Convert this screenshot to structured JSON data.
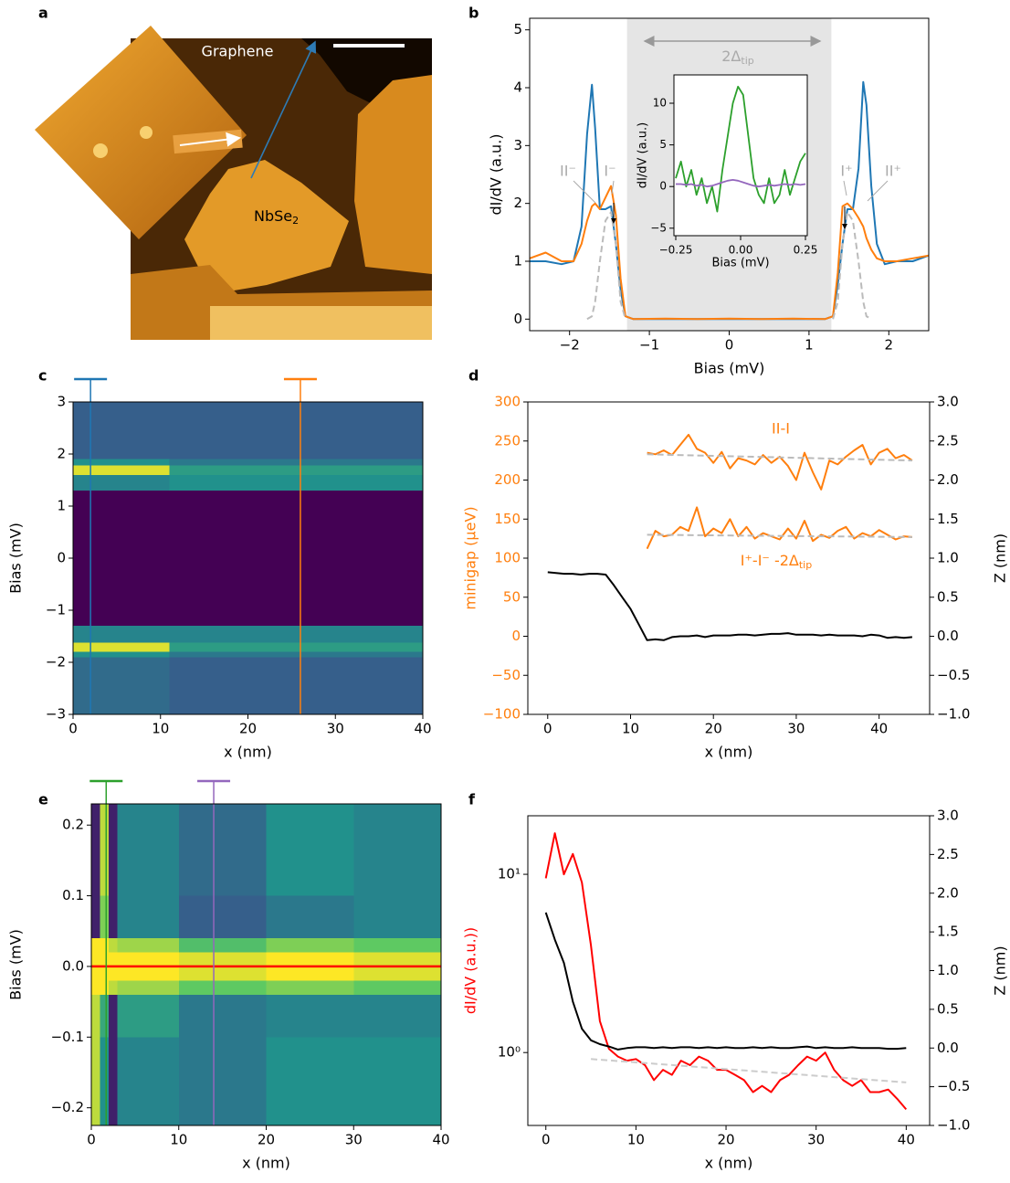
{
  "panel_labels": [
    "a",
    "b",
    "c",
    "d",
    "e",
    "f"
  ],
  "image_a": {
    "labels": [
      "Graphene",
      {
        "text": "NbSe",
        "sub": "2"
      }
    ]
  },
  "chart_data": [
    {
      "type": "line",
      "x": [
        -2.5,
        -2.3,
        -2.1,
        -1.95,
        -1.85,
        -1.78,
        -1.72,
        -1.68,
        -1.62,
        -1.55,
        -1.48,
        -1.42,
        -1.36,
        -1.3,
        -1.2,
        -0.8,
        -0.4,
        0,
        0.4,
        0.8,
        1.2,
        1.3,
        1.36,
        1.42,
        1.48,
        1.55,
        1.62,
        1.68,
        1.72,
        1.78,
        1.85,
        1.95,
        2.1,
        2.3,
        2.5
      ],
      "series": [
        {
          "color": "#1f77b4",
          "values": [
            1.0,
            1.0,
            0.95,
            1.0,
            1.6,
            3.2,
            4.05,
            3.3,
            1.9,
            1.9,
            1.95,
            1.3,
            0.5,
            0.05,
            0,
            0,
            0,
            0,
            0,
            0,
            0,
            0.05,
            0.6,
            1.3,
            1.9,
            1.9,
            2.6,
            4.1,
            3.7,
            2.3,
            1.3,
            0.95,
            1.0,
            1.0,
            1.1
          ]
        },
        {
          "color": "#ff7f0e",
          "values": [
            1.05,
            1.15,
            1.0,
            1.0,
            1.3,
            1.7,
            1.95,
            2.0,
            1.9,
            2.1,
            2.3,
            1.8,
            0.7,
            0.05,
            0,
            0.01,
            0,
            0.01,
            0,
            0.01,
            0,
            0.05,
            0.8,
            1.95,
            2.0,
            1.9,
            1.75,
            1.6,
            1.4,
            1.2,
            1.05,
            1.0,
            1.0,
            1.05,
            1.1
          ]
        },
        {
          "color": "#bbbbbb",
          "dash": true,
          "values": [
            null,
            null,
            null,
            null,
            null,
            0,
            0.05,
            0.3,
            1.0,
            1.7,
            1.85,
            1.3,
            0.3,
            0,
            null,
            null,
            null,
            null,
            null,
            null,
            null,
            0,
            0.3,
            1.3,
            1.85,
            1.7,
            1.0,
            0.3,
            0.05,
            0,
            null,
            null,
            null,
            null,
            null
          ]
        }
      ],
      "xlim": [
        -2.5,
        2.5
      ],
      "xticks": [
        {
          "value": -2,
          "label": "−2"
        },
        {
          "value": -1,
          "label": "−1"
        },
        0,
        1,
        2
      ],
      "ylim": [
        -0.2,
        5.2
      ],
      "yticks": [
        0,
        1,
        2,
        3,
        4,
        5
      ],
      "xlabel": "Bias (mV)",
      "ylabel": "dI/dV (a.u.)",
      "shade": [
        -1.28,
        1.28
      ],
      "shade_color": "#e5e5e5",
      "annotations": [
        "II⁻",
        "I⁻",
        "I⁺",
        "II⁺",
        {
          "text": "2Δ",
          "sub": "tip"
        }
      ],
      "annotation_color": "#aaaaaa",
      "inset": {
        "type": "line",
        "x": [
          -0.25,
          -0.23,
          -0.21,
          -0.19,
          -0.17,
          -0.15,
          -0.13,
          -0.11,
          -0.09,
          -0.07,
          -0.05,
          -0.03,
          -0.01,
          0.01,
          0.03,
          0.05,
          0.07,
          0.09,
          0.11,
          0.13,
          0.15,
          0.17,
          0.19,
          0.21,
          0.23,
          0.25
        ],
        "series": [
          {
            "color": "#2ca02c",
            "values": [
              1,
              3,
              0,
              2,
              -1,
              1,
              -2,
              0,
              -3,
              2,
              6,
              10,
              12,
              11,
              6,
              1,
              -1,
              -2,
              1,
              -2,
              -1,
              2,
              -1,
              1,
              3,
              4
            ]
          },
          {
            "color": "#9467bd",
            "values": [
              0.3,
              0.3,
              0.2,
              0.3,
              0.1,
              0.2,
              0.0,
              0.1,
              0.3,
              0.5,
              0.7,
              0.8,
              0.7,
              0.5,
              0.3,
              0.1,
              0.0,
              0.1,
              0.2,
              0.1,
              0.2,
              0.3,
              0.2,
              0.3,
              0.2,
              0.3
            ]
          }
        ],
        "xlim": [
          -0.257,
          0.257
        ],
        "xticks": [
          {
            "value": -0.25,
            "label": "−0.25"
          },
          {
            "value": 0,
            "label": "0.00"
          },
          0.25
        ],
        "ylim": [
          -5.9,
          13.4
        ],
        "yticks": [
          {
            "value": -5,
            "label": "−5"
          },
          0,
          5,
          10
        ],
        "xlabel": "Bias (mV)",
        "ylabel": "dI/dV (a.u.)"
      }
    },
    {
      "type": "heatmap",
      "xbins": [
        0,
        11,
        40
      ],
      "ybins": [
        -3,
        -1.9,
        -1.8,
        -1.62,
        -1.3,
        1.3,
        1.6,
        1.78,
        1.9,
        3
      ],
      "z": [
        [
          0.35,
          0.3
        ],
        [
          0.5,
          0.4
        ],
        [
          0.95,
          0.55
        ],
        [
          0.45,
          0.45
        ],
        [
          0.0,
          0.0
        ],
        [
          0.45,
          0.5
        ],
        [
          0.95,
          0.55
        ],
        [
          0.5,
          0.4
        ],
        [
          0.3,
          0.3
        ]
      ],
      "colormap": "viridis",
      "clim": [
        0,
        1
      ],
      "xlim": [
        0,
        40
      ],
      "xticks": [
        0,
        10,
        20,
        30,
        40
      ],
      "ylim": [
        -3,
        3
      ],
      "yticks": [
        {
          "value": -3,
          "label": "−3"
        },
        {
          "value": -2,
          "label": "−2"
        },
        {
          "value": -1,
          "label": "−1"
        },
        0,
        1,
        2,
        3
      ],
      "xlabel": "x (nm)",
      "ylabel": "Bias (mV)",
      "markers": [
        {
          "x": 2,
          "color": "#1f77b4"
        },
        {
          "x": 26,
          "color": "#ff7f0e"
        }
      ]
    },
    {
      "type": "line",
      "series": [
        {
          "x": [
            12,
            13,
            14,
            15,
            16,
            17,
            18,
            19,
            20,
            21,
            22,
            23,
            24,
            25,
            26,
            27,
            28,
            29,
            30,
            31,
            32,
            33,
            34,
            35,
            36,
            37,
            38,
            39,
            40,
            41,
            42,
            43,
            44
          ],
          "color": "#ff7f0e",
          "values": [
            235,
            233,
            238,
            232,
            245,
            258,
            240,
            235,
            222,
            236,
            215,
            228,
            225,
            220,
            232,
            222,
            230,
            218,
            200,
            235,
            210,
            188,
            225,
            220,
            230,
            238,
            245,
            220,
            235,
            240,
            228,
            232,
            225
          ]
        },
        {
          "x": [
            12,
            44
          ],
          "color": "#bbbbbb",
          "dash": true,
          "values": [
            233,
            225
          ]
        },
        {
          "x": [
            12,
            13,
            14,
            15,
            16,
            17,
            18,
            19,
            20,
            21,
            22,
            23,
            24,
            25,
            26,
            27,
            28,
            29,
            30,
            31,
            32,
            33,
            34,
            35,
            36,
            37,
            38,
            39,
            40,
            41,
            42,
            43,
            44
          ],
          "color": "#ff7f0e",
          "values": [
            112,
            135,
            128,
            130,
            140,
            135,
            165,
            128,
            138,
            132,
            150,
            128,
            140,
            125,
            132,
            128,
            124,
            138,
            125,
            148,
            122,
            130,
            126,
            135,
            140,
            125,
            132,
            128,
            136,
            130,
            124,
            128,
            127
          ]
        },
        {
          "x": [
            12,
            44
          ],
          "color": "#bbbbbb",
          "dash": true,
          "values": [
            130,
            127
          ]
        },
        {
          "x": [
            0,
            1,
            2,
            3,
            4,
            5,
            6,
            7,
            8,
            9,
            10,
            11,
            12,
            13,
            14,
            15,
            16,
            17,
            18,
            19,
            20,
            21,
            22,
            23,
            24,
            25,
            26,
            27,
            28,
            29,
            30,
            31,
            32,
            33,
            34,
            35,
            36,
            37,
            38,
            39,
            40,
            41,
            42,
            43,
            44
          ],
          "color": "#000000",
          "axis": "y2",
          "values": [
            0.82,
            0.81,
            0.8,
            0.8,
            0.79,
            0.8,
            0.8,
            0.79,
            0.65,
            0.5,
            0.35,
            0.15,
            -0.05,
            -0.04,
            -0.05,
            -0.01,
            0.0,
            0.0,
            0.01,
            -0.01,
            0.01,
            0.01,
            0.01,
            0.02,
            0.02,
            0.01,
            0.02,
            0.03,
            0.03,
            0.04,
            0.02,
            0.02,
            0.02,
            0.01,
            0.02,
            0.01,
            0.01,
            0.01,
            0.0,
            0.02,
            0.01,
            -0.02,
            -0.01,
            -0.02,
            -0.01
          ]
        }
      ],
      "xlim": [
        -2.4,
        46.1
      ],
      "xticks": [
        0,
        10,
        20,
        30,
        40
      ],
      "ylim": [
        -100,
        300
      ],
      "yticks": [
        {
          "value": -100,
          "label": "−100"
        },
        {
          "value": -50,
          "label": "−50"
        },
        0,
        50,
        100,
        150,
        200,
        250,
        300
      ],
      "y2lim": [
        -1,
        3
      ],
      "y2ticks": [
        {
          "value": -1,
          "label": "−1.0"
        },
        {
          "value": -0.5,
          "label": "−0.5"
        },
        {
          "value": 0,
          "label": "0.0"
        },
        0.5,
        {
          "value": 1,
          "label": "1.0"
        },
        1.5,
        {
          "value": 2,
          "label": "2.0"
        },
        2.5,
        {
          "value": 3,
          "label": "3.0"
        }
      ],
      "xlabel": "x (nm)",
      "ylabel": "minigap (µeV)",
      "ylabel_color": "#ff7f0e",
      "ytick_color": "#ff7f0e",
      "y2label": "Z (nm)",
      "annotations": [
        "II-I",
        {
          "text": "I⁺-I⁻ -2Δ",
          "sub": "tip"
        }
      ],
      "annotation_color": "#ff7f0e"
    },
    {
      "type": "heatmap",
      "xbins": [
        0,
        1,
        2,
        3,
        10,
        20,
        30,
        40
      ],
      "ybins": [
        -0.225,
        -0.1,
        -0.04,
        -0.02,
        0.02,
        0.04,
        0.1,
        0.23
      ],
      "z": [
        [
          0.9,
          0.5,
          0.1,
          0.45,
          0.4,
          0.5,
          0.5
        ],
        [
          0.9,
          0.6,
          0.1,
          0.55,
          0.4,
          0.45,
          0.45
        ],
        [
          1,
          1,
          0.9,
          0.85,
          0.75,
          0.8,
          0.75
        ],
        [
          1,
          1,
          1,
          1,
          0.95,
          1,
          0.95
        ],
        [
          1,
          1,
          0.9,
          0.85,
          0.7,
          0.8,
          0.75
        ],
        [
          0.1,
          0.8,
          0.1,
          0.45,
          0.3,
          0.4,
          0.45
        ],
        [
          0.1,
          0.9,
          0.1,
          0.45,
          0.35,
          0.5,
          0.45
        ]
      ],
      "colormap": "viridis",
      "clim": [
        0,
        1
      ],
      "xlim": [
        0,
        40
      ],
      "xticks": [
        0,
        10,
        20,
        30,
        40
      ],
      "ylim": [
        -0.225,
        0.23
      ],
      "yticks": [
        {
          "value": -0.2,
          "label": "−0.2"
        },
        {
          "value": -0.1,
          "label": "−0.1"
        },
        {
          "value": 0,
          "label": "0.0"
        },
        0.1,
        0.2
      ],
      "xlabel": "x (nm)",
      "ylabel": "Bias (mV)",
      "hline": 0,
      "hline_color": "#ff0000",
      "markers": [
        {
          "x": 1.7,
          "color": "#2ca02c"
        },
        {
          "x": 14,
          "color": "#9467bd"
        }
      ]
    },
    {
      "type": "line",
      "ylog": true,
      "x": [
        0,
        1,
        2,
        3,
        4,
        5,
        6,
        7,
        8,
        9,
        10,
        11,
        12,
        13,
        14,
        15,
        16,
        17,
        18,
        19,
        20,
        21,
        22,
        23,
        24,
        25,
        26,
        27,
        28,
        29,
        30,
        31,
        32,
        33,
        34,
        35,
        36,
        37,
        38,
        39,
        40
      ],
      "series": [
        {
          "color": "#ff0000",
          "values": [
            9.5,
            17,
            10,
            13,
            9,
            4,
            1.5,
            1.05,
            0.95,
            0.9,
            0.92,
            0.85,
            0.7,
            0.8,
            0.75,
            0.9,
            0.85,
            0.95,
            0.9,
            0.8,
            0.8,
            0.75,
            0.7,
            0.6,
            0.65,
            0.6,
            0.7,
            0.75,
            0.85,
            0.95,
            0.9,
            1.0,
            0.8,
            0.7,
            0.65,
            0.7,
            0.6,
            0.6,
            0.62,
            0.55,
            0.48
          ]
        },
        {
          "x": [
            5,
            40
          ],
          "color": "#cccccc",
          "dash": true,
          "values": [
            0.92,
            0.68
          ]
        },
        {
          "color": "#000000",
          "axis": "y2",
          "values": [
            1.75,
            1.4,
            1.1,
            0.6,
            0.25,
            0.1,
            0.05,
            0.02,
            -0.02,
            0.0,
            0.01,
            0.01,
            0.0,
            0.01,
            0.0,
            0.01,
            0.01,
            0.0,
            0.01,
            0.0,
            0.01,
            0.0,
            0.0,
            0.01,
            0.0,
            0.01,
            0.0,
            0.0,
            0.01,
            0.02,
            0.0,
            0.01,
            0.0,
            0.0,
            0.01,
            0.0,
            0.0,
            0.0,
            -0.01,
            -0.01,
            0.0
          ]
        }
      ],
      "xlim": [
        -2,
        42.6
      ],
      "xticks": [
        0,
        10,
        20,
        30,
        40
      ],
      "ylim": [
        0.39,
        21.3
      ],
      "yticks": [
        {
          "value": 1,
          "label": "10⁰"
        },
        {
          "value": 10,
          "label": "10¹"
        }
      ],
      "y2lim": [
        -1,
        3
      ],
      "y2ticks": [
        {
          "value": -1,
          "label": "−1.0"
        },
        {
          "value": -0.5,
          "label": "−0.5"
        },
        {
          "value": 0,
          "label": "0.0"
        },
        0.5,
        {
          "value": 1,
          "label": "1.0"
        },
        1.5,
        {
          "value": 2,
          "label": "2.0"
        },
        2.5,
        {
          "value": 3,
          "label": "3.0"
        }
      ],
      "xlabel": "x (nm)",
      "ylabel": "dI/dV (a.u.))",
      "ylabel_color": "#ff0000",
      "y2label": "Z (nm)"
    }
  ]
}
